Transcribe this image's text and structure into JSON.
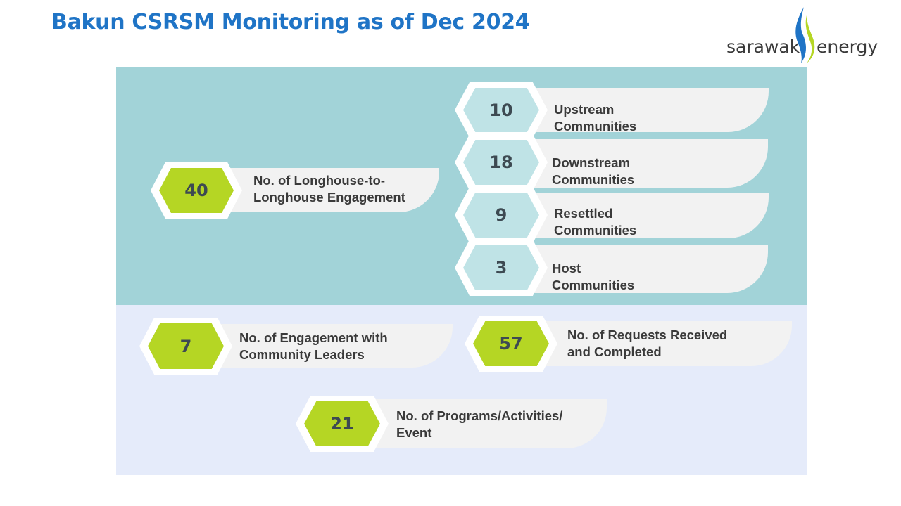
{
  "title": "Bakun CSRSM Monitoring as of Dec 2024",
  "logo": {
    "text_left": "sarawak",
    "text_right": "energy",
    "colors": {
      "blue": "#1f74c6",
      "green": "#b5d624"
    }
  },
  "colors": {
    "title": "#1f74c6",
    "top_panel": "#a2d3d8",
    "bottom_panel": "#e5ebfa",
    "green_hex": "#b5d624",
    "teal_hex": "#bfe3e6",
    "tab": "#f2f2f2"
  },
  "stats": {
    "longhouse": {
      "value": "40",
      "label_1": "No. of Longhouse-to-",
      "label_2": "Longhouse Engagement"
    },
    "upstream": {
      "value": "10",
      "label": "Upstream Communities"
    },
    "downstream": {
      "value": "18",
      "label": "Downstream Communities"
    },
    "resettled": {
      "value": "9",
      "label": "Resettled Communities"
    },
    "host": {
      "value": "3",
      "label": "Host Communities"
    },
    "leaders": {
      "value": "7",
      "label_1": "No. of Engagement with",
      "label_2": "Community Leaders"
    },
    "requests": {
      "value": "57",
      "label_1": "No. of Requests Received",
      "label_2": "and Completed"
    },
    "programs": {
      "value": "21",
      "label_1": "No. of Programs/Activities/",
      "label_2": "Event"
    }
  }
}
